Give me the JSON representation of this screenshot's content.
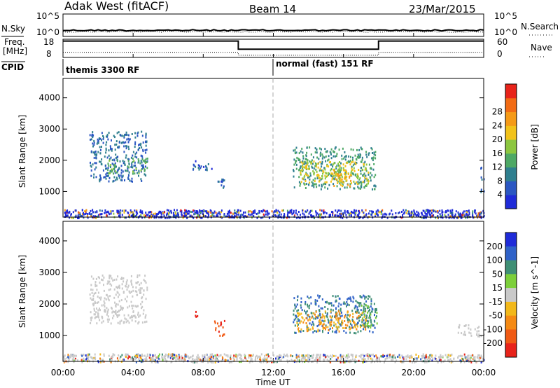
{
  "header": {
    "station": "Adak West (fitACF)",
    "beam": "Beam 14",
    "date": "23/Mar/2015"
  },
  "noise_panel": {
    "left_label": "N.Sky",
    "right_label": "N.Search",
    "ytick_top": "10^5",
    "ytick_bottom": "10^0",
    "sky_level": 1.2,
    "search_level": 1.0
  },
  "freq_panel": {
    "left_label_1": "Freq.",
    "left_label_2": "[MHz]",
    "right_label": "Nave",
    "yticks_left": [
      "18",
      "8"
    ],
    "yticks_right": [
      "60",
      "0"
    ],
    "freq_segments": [
      {
        "from": 0,
        "to": 10,
        "level": 0.9
      },
      {
        "from": 10,
        "to": 18,
        "level": 0.45
      },
      {
        "from": 18,
        "to": 24,
        "level": 0.9
      }
    ],
    "nave_segments": [
      {
        "from": 0,
        "to": 10,
        "level": 0.28
      },
      {
        "from": 10,
        "to": 18,
        "level": 0.12
      },
      {
        "from": 18,
        "to": 24,
        "level": 0.28
      }
    ]
  },
  "cpid_panel": {
    "label": "CPID",
    "modes": [
      {
        "start": 0,
        "text": "themis 3300 RF"
      },
      {
        "start": 12,
        "text": "normal (fast) 151 RF"
      }
    ]
  },
  "range_axis": {
    "ylabel": "Slant Range [km]",
    "yticks": [
      1000,
      2000,
      3000,
      4000
    ],
    "ylim": [
      180,
      4620
    ]
  },
  "time_axis": {
    "xlabel": "Time UT",
    "ticks": [
      "00:00",
      "04:00",
      "08:00",
      "12:00",
      "16:00",
      "20:00",
      "00:00"
    ],
    "tick_hours": [
      0,
      4,
      8,
      12,
      16,
      20,
      24
    ]
  },
  "power_colorbar": {
    "label": "Power [dB]",
    "ticks": [
      "4",
      "8",
      "12",
      "16",
      "20",
      "24",
      "28"
    ],
    "colors": [
      "#1f2bd8",
      "#2b57c2",
      "#2f7f8f",
      "#4ea865",
      "#8cc63f",
      "#f2c21a",
      "#f59a17",
      "#f26b14",
      "#e8231a"
    ]
  },
  "velocity_colorbar": {
    "label": "Velocity [m s^-1]",
    "ticks": [
      "200",
      "100",
      "50",
      "15",
      "-15",
      "-50",
      "-100",
      "-200"
    ],
    "colors": [
      "#1f2bd8",
      "#2f62c8",
      "#3f8f75",
      "#7ccf3a",
      "#c9c9c9",
      "#f2b81a",
      "#f58a14",
      "#f05a14",
      "#e8231a"
    ]
  },
  "chart_data": {
    "type": "heatmap",
    "title": "Adak West (fitACF)  Beam 14  23/Mar/2015",
    "xlabel": "Time UT",
    "ylabel": "Slant Range [km]",
    "xlim_hours": [
      0,
      24
    ],
    "ylim_km": [
      180,
      4620
    ],
    "panels": [
      {
        "name": "Power [dB]",
        "echo_regions": [
          {
            "t0": 1.5,
            "t1": 4.8,
            "r0": 1350,
            "r1": 2950,
            "value": 8
          },
          {
            "t0": 2.5,
            "t1": 4.8,
            "r0": 1600,
            "r1": 2100,
            "value": 14
          },
          {
            "t0": 7.3,
            "t1": 8.5,
            "r0": 1700,
            "r1": 2000,
            "value": 6
          },
          {
            "t0": 8.8,
            "t1": 9.2,
            "r0": 1000,
            "r1": 1500,
            "value": 6
          },
          {
            "t0": 13.1,
            "t1": 17.8,
            "r0": 1100,
            "r1": 2450,
            "value": 12
          },
          {
            "t0": 13.5,
            "t1": 17.4,
            "r0": 1250,
            "r1": 2000,
            "value": 20
          },
          {
            "t0": 15.3,
            "t1": 16.4,
            "r0": 1200,
            "r1": 1700,
            "value": 24
          },
          {
            "t0": 23.8,
            "t1": 24,
            "r0": 1000,
            "r1": 1900,
            "value": 8
          }
        ]
      },
      {
        "name": "Velocity [m s^-1]",
        "echo_regions": [
          {
            "t0": 1.5,
            "t1": 4.8,
            "r0": 1400,
            "r1": 2950,
            "value": 0
          },
          {
            "t0": 7.4,
            "t1": 7.8,
            "r0": 1600,
            "r1": 1800,
            "value": -200
          },
          {
            "t0": 8.6,
            "t1": 9.2,
            "r0": 1000,
            "r1": 1500,
            "value": -200
          },
          {
            "t0": 13.1,
            "t1": 17.8,
            "r0": 1100,
            "r1": 2300,
            "value": 100
          },
          {
            "t0": 13.3,
            "t1": 17.3,
            "r0": 1150,
            "r1": 1800,
            "value": -50
          },
          {
            "t0": 17.0,
            "t1": 17.9,
            "r0": 1250,
            "r1": 2000,
            "value": 50
          },
          {
            "t0": 22.5,
            "t1": 24,
            "r0": 1000,
            "r1": 1400,
            "value": 0
          }
        ]
      }
    ]
  }
}
